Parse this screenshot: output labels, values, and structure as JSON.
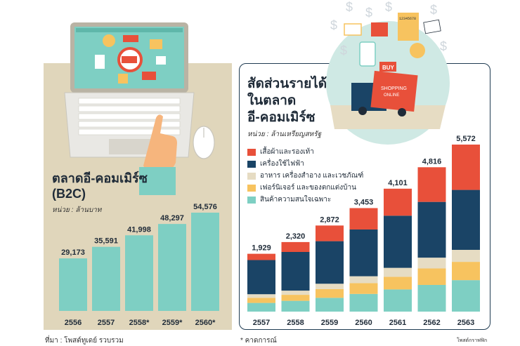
{
  "left": {
    "title_line1": "ตลาดอี-คอมเมิร์ซ",
    "title_line2": "(B2C)",
    "unit": "หน่วย : ล้านบาท"
  },
  "right": {
    "title_line1": "สัดส่วนรายได้",
    "title_line2": "ในตลาด",
    "title_line3": "อี-คอมเมิร์ซ",
    "unit": "หน่วย : ล้านเหรียญสหรัฐ"
  },
  "footer": {
    "source": "ที่มา : โพสต์ทูเดย์ รวบรวม",
    "note": "* คาดการณ์",
    "brand": "โพสต์กราฟฟิก"
  },
  "illustration": {
    "buy_tag": "BUY",
    "truck_text_1": "SHOPPING",
    "truck_text_2": "ONLINE",
    "calculator_text": "12345678"
  },
  "colors": {
    "teal": "#7ecfc3",
    "navy": "#1a4466",
    "red": "#e8503a",
    "beige": "#e6dcc3",
    "yellow": "#f7c35f"
  },
  "chart_data": [
    {
      "type": "bar",
      "categories": [
        "2556",
        "2557",
        "2558*",
        "2559*",
        "2560*"
      ],
      "values": [
        29173,
        35591,
        41998,
        48297,
        54576
      ],
      "data_labels": [
        "29,173",
        "35,591",
        "41,998",
        "48,297",
        "54,576"
      ],
      "ylim": [
        0,
        60000
      ]
    },
    {
      "type": "bar",
      "stacked": true,
      "categories": [
        "2557",
        "2558",
        "2559",
        "2560",
        "2561",
        "2562",
        "2563"
      ],
      "totals": [
        1929,
        2320,
        2872,
        3453,
        4101,
        4816,
        5572
      ],
      "total_labels": [
        "1,929",
        "2,320",
        "2,872",
        "3,453",
        "4,101",
        "4,816",
        "5,572"
      ],
      "series": [
        {
          "name": "สินค้าความสนใจเฉพาะ",
          "color": "#7ecfc3",
          "values": [
            290,
            360,
            460,
            590,
            740,
            890,
            1050
          ]
        },
        {
          "name": "เฟอร์นิเจอร์ และของตกแต่งบ้าน",
          "color": "#f7c35f",
          "values": [
            170,
            200,
            290,
            360,
            420,
            550,
            610
          ]
        },
        {
          "name": "อาหาร เครื่องสำอาง และเวชภัณฑ์",
          "color": "#e6dcc3",
          "values": [
            120,
            140,
            180,
            230,
            300,
            360,
            400
          ]
        },
        {
          "name": "เครื่องใช้ไฟฟ้า",
          "color": "#1a4466",
          "values": [
            1140,
            1290,
            1420,
            1560,
            1740,
            1860,
            2000
          ]
        },
        {
          "name": "เสื้อผ้าและรองเท้า",
          "color": "#e8503a",
          "values": [
            209,
            330,
            522,
            713,
            901,
            1156,
            1512
          ]
        }
      ],
      "ylim": [
        0,
        6000
      ]
    }
  ]
}
